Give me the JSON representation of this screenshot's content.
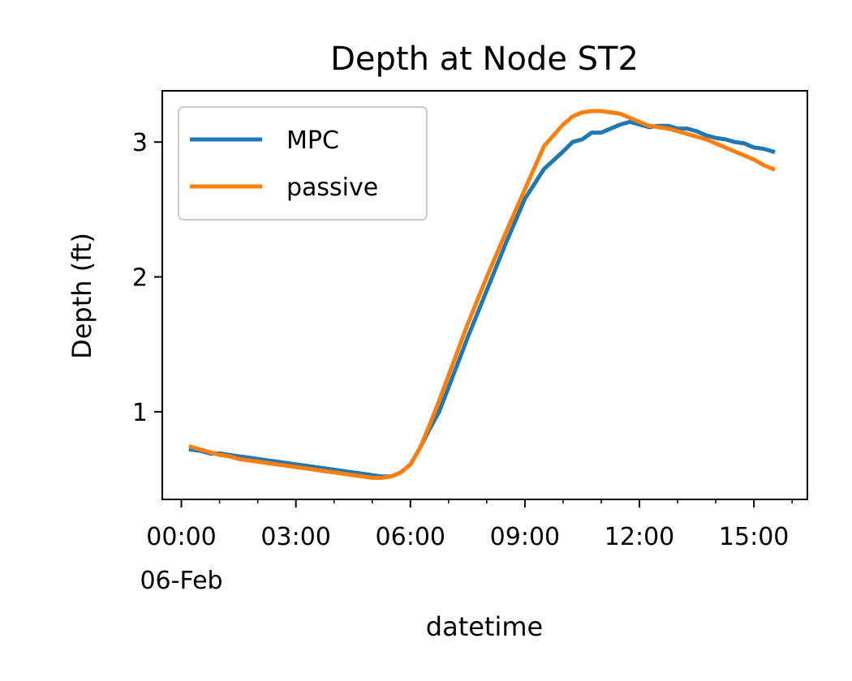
{
  "chart_data": {
    "type": "line",
    "title": "Depth at Node ST2",
    "xlabel": "datetime",
    "ylabel": "Depth (ft)",
    "xlim": [
      -0.5,
      16.4
    ],
    "ylim": [
      0.35,
      3.38
    ],
    "x_ticks": [
      {
        "value": 0,
        "label": "00:00",
        "sublabel": "06-Feb"
      },
      {
        "value": 3,
        "label": "03:00",
        "sublabel": ""
      },
      {
        "value": 6,
        "label": "06:00",
        "sublabel": ""
      },
      {
        "value": 9,
        "label": "09:00",
        "sublabel": ""
      },
      {
        "value": 12,
        "label": "12:00",
        "sublabel": ""
      },
      {
        "value": 15,
        "label": "15:00",
        "sublabel": ""
      }
    ],
    "y_ticks": [
      {
        "value": 1,
        "label": "1"
      },
      {
        "value": 2,
        "label": "2"
      },
      {
        "value": 3,
        "label": "3"
      }
    ],
    "grid": false,
    "legend_position": "top-left",
    "series": [
      {
        "name": "MPC",
        "color": "#1f77b4",
        "x": [
          0.25,
          0.5,
          0.75,
          1.0,
          1.25,
          1.5,
          1.75,
          2.0,
          2.25,
          2.5,
          2.75,
          3.0,
          3.25,
          3.5,
          3.75,
          4.0,
          4.25,
          4.5,
          4.75,
          5.0,
          5.25,
          5.5,
          5.75,
          6.0,
          6.25,
          6.5,
          6.75,
          7.0,
          7.5,
          8.0,
          8.5,
          9.0,
          9.5,
          10.0,
          10.25,
          10.5,
          10.75,
          11.0,
          11.25,
          11.5,
          11.75,
          12.0,
          12.25,
          12.5,
          12.75,
          13.0,
          13.25,
          13.5,
          13.75,
          14.0,
          14.25,
          14.5,
          14.75,
          15.0,
          15.25,
          15.5
        ],
        "y": [
          0.72,
          0.71,
          0.69,
          0.69,
          0.68,
          0.67,
          0.66,
          0.65,
          0.64,
          0.63,
          0.62,
          0.61,
          0.6,
          0.59,
          0.58,
          0.57,
          0.56,
          0.55,
          0.54,
          0.53,
          0.52,
          0.52,
          0.55,
          0.61,
          0.73,
          0.87,
          1.0,
          1.18,
          1.55,
          1.9,
          2.25,
          2.58,
          2.8,
          2.93,
          3.0,
          3.02,
          3.07,
          3.07,
          3.1,
          3.13,
          3.15,
          3.13,
          3.11,
          3.12,
          3.12,
          3.1,
          3.1,
          3.08,
          3.05,
          3.03,
          3.02,
          3.0,
          2.99,
          2.96,
          2.95,
          2.93
        ]
      },
      {
        "name": "passive",
        "color": "#ff7f0e",
        "x": [
          0.25,
          0.5,
          0.75,
          1.0,
          1.25,
          1.5,
          1.75,
          2.0,
          2.25,
          2.5,
          2.75,
          3.0,
          3.25,
          3.5,
          3.75,
          4.0,
          4.25,
          4.5,
          4.75,
          5.0,
          5.25,
          5.5,
          5.75,
          6.0,
          6.25,
          6.5,
          6.75,
          7.0,
          7.5,
          8.0,
          8.5,
          9.0,
          9.5,
          10.0,
          10.25,
          10.5,
          10.75,
          11.0,
          11.25,
          11.5,
          11.75,
          12.0,
          12.25,
          12.5,
          12.75,
          13.0,
          13.25,
          13.5,
          13.75,
          14.0,
          14.25,
          14.5,
          14.75,
          15.0,
          15.25,
          15.5
        ],
        "y": [
          0.74,
          0.72,
          0.7,
          0.68,
          0.67,
          0.65,
          0.64,
          0.63,
          0.62,
          0.61,
          0.6,
          0.59,
          0.58,
          0.57,
          0.56,
          0.55,
          0.54,
          0.53,
          0.52,
          0.51,
          0.51,
          0.52,
          0.55,
          0.61,
          0.73,
          0.9,
          1.08,
          1.27,
          1.65,
          2.0,
          2.33,
          2.65,
          2.97,
          3.13,
          3.19,
          3.22,
          3.23,
          3.23,
          3.22,
          3.21,
          3.18,
          3.15,
          3.12,
          3.11,
          3.1,
          3.08,
          3.06,
          3.04,
          3.02,
          2.99,
          2.96,
          2.93,
          2.9,
          2.87,
          2.83,
          2.8
        ]
      }
    ]
  }
}
